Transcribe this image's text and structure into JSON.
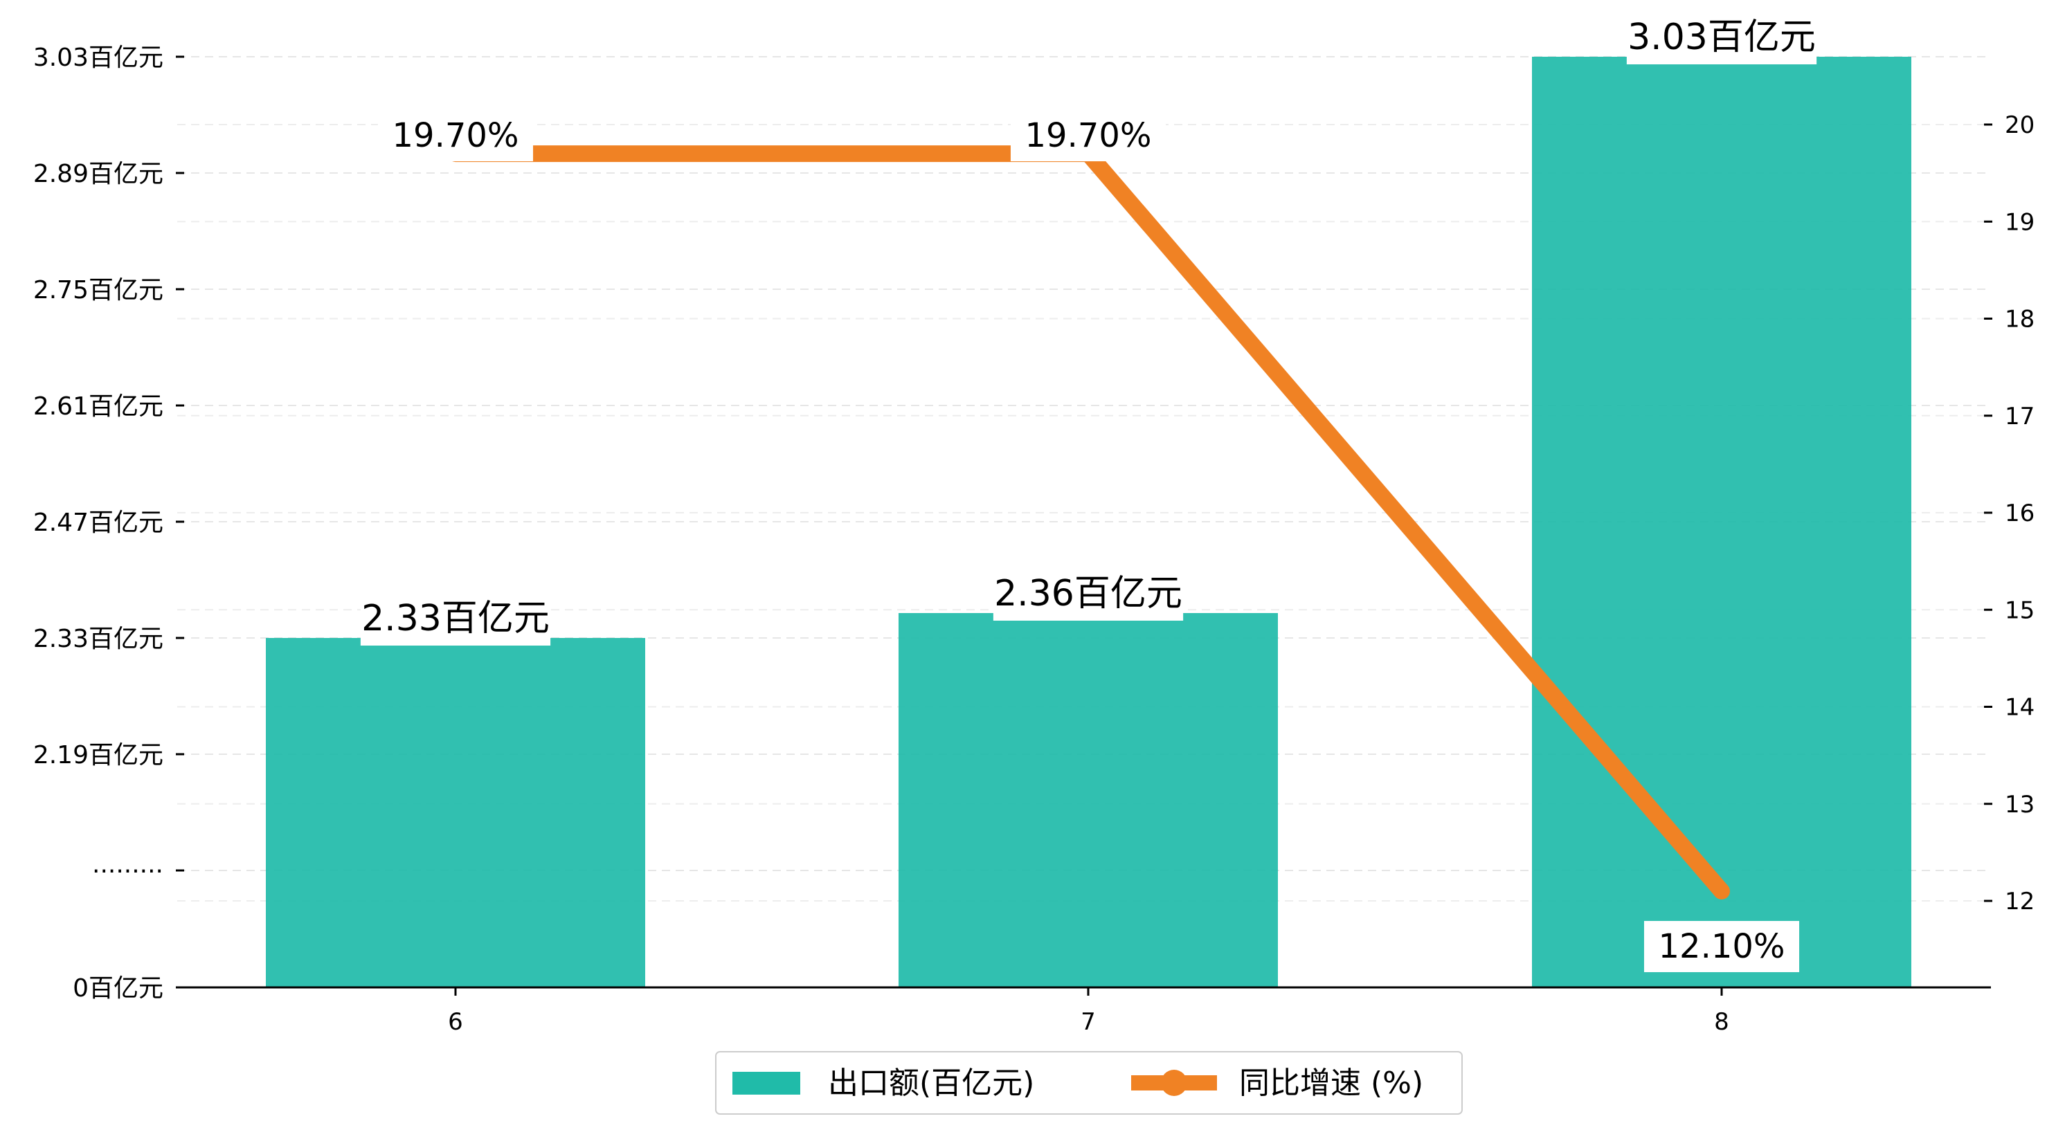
{
  "chart_data": {
    "type": "bar",
    "categories": [
      "6",
      "7",
      "8"
    ],
    "series": [
      {
        "name": "出口额(百亿元)",
        "type": "bar",
        "axis": "left",
        "color": "#20bba9",
        "values": [
          2.33,
          2.36,
          3.03
        ],
        "labels": [
          "2.33百亿元",
          "2.36百亿元",
          "3.03百亿元"
        ]
      },
      {
        "name": "同比增速 (%)",
        "type": "line",
        "axis": "right",
        "color": "#f08224",
        "values": [
          19.7,
          19.7,
          12.1
        ],
        "labels": [
          "19.70%",
          "19.70%",
          "12.10%"
        ]
      }
    ],
    "left_axis": {
      "ticks": [
        {
          "value": 0,
          "label": "0百亿元"
        },
        {
          "value": 2.05,
          "label": "·········"
        },
        {
          "value": 2.19,
          "label": "2.19百亿元"
        },
        {
          "value": 2.33,
          "label": "2.33百亿元"
        },
        {
          "value": 2.47,
          "label": "2.47百亿元"
        },
        {
          "value": 2.61,
          "label": "2.61百亿元"
        },
        {
          "value": 2.75,
          "label": "2.75百亿元"
        },
        {
          "value": 2.89,
          "label": "2.89百亿元"
        },
        {
          "value": 3.03,
          "label": "3.03百亿元"
        }
      ],
      "broken": true,
      "break_range": [
        0,
        2.05
      ]
    },
    "right_axis": {
      "ticks": [
        12,
        13,
        14,
        15,
        16,
        17,
        18,
        19,
        20
      ],
      "ylim": [
        11.1,
        20.7
      ]
    },
    "legend_position": "bottom-center",
    "grid": "horizontal-dashed"
  }
}
